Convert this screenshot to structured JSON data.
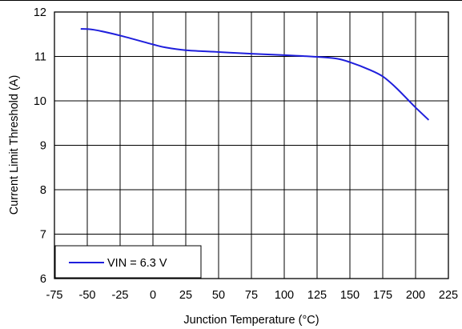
{
  "chart_data": {
    "type": "line",
    "title": "",
    "xlabel": "Junction Temperature (°C)",
    "ylabel": "Current Limit Threshold (A)",
    "xlim": [
      -75,
      225
    ],
    "ylim": [
      6,
      12
    ],
    "x_ticks": [
      -75,
      -50,
      -25,
      0,
      25,
      50,
      75,
      100,
      125,
      150,
      175,
      200,
      225
    ],
    "y_ticks": [
      6,
      7,
      8,
      9,
      10,
      11,
      12
    ],
    "grid": true,
    "legend_position": "bottom-left",
    "series": [
      {
        "name": "VIN = 6.3 V",
        "color": "#1f1fdc",
        "x": [
          -55,
          -45,
          -25,
          0,
          10,
          25,
          50,
          75,
          100,
          125,
          140,
          150,
          165,
          175,
          185,
          195,
          200,
          210
        ],
        "y": [
          11.62,
          11.6,
          11.47,
          11.27,
          11.2,
          11.14,
          11.1,
          11.06,
          11.03,
          10.99,
          10.95,
          10.87,
          10.7,
          10.55,
          10.3,
          10.0,
          9.85,
          9.57
        ]
      }
    ]
  }
}
